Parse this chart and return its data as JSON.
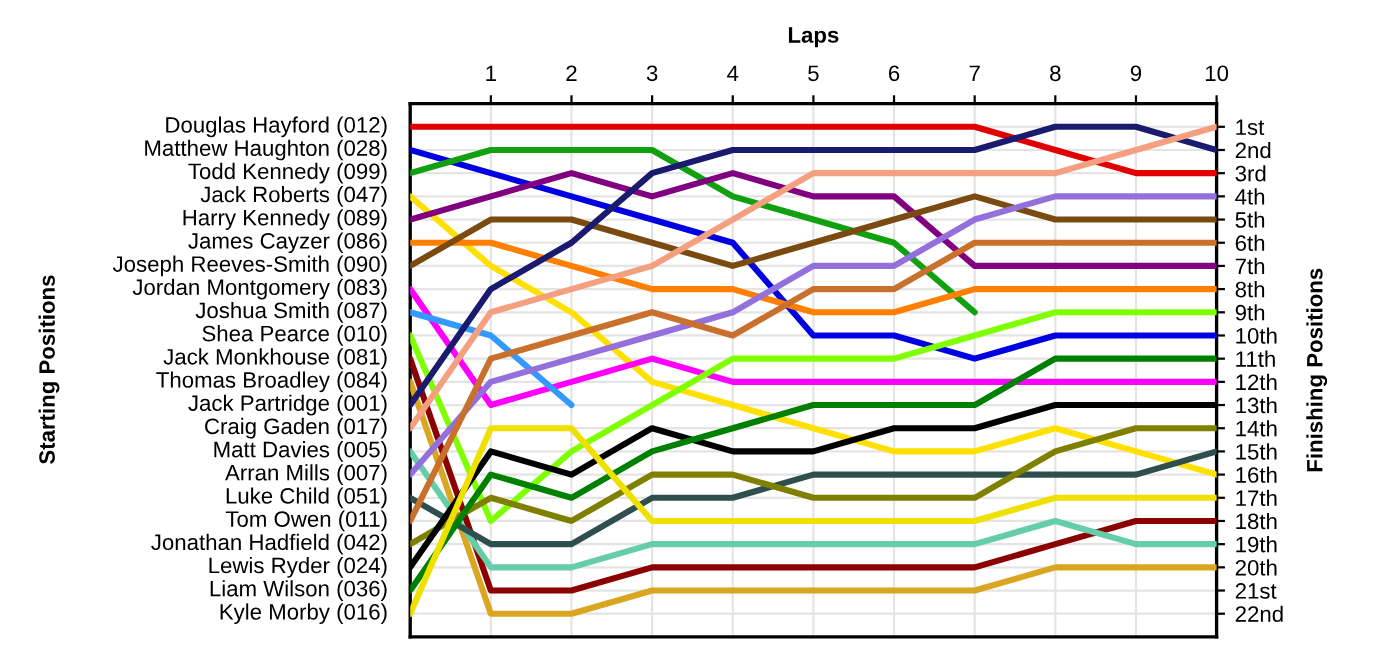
{
  "chart_data": {
    "type": "line",
    "xlabel": "Laps",
    "ylabel": "Finishing Positions",
    "annotations": [
      "Starting Positions"
    ],
    "x": [
      0,
      1,
      2,
      3,
      4,
      5,
      6,
      7,
      8,
      9,
      10
    ],
    "xlim": [
      0,
      10
    ],
    "xticks": [
      1,
      2,
      3,
      4,
      5,
      6,
      7,
      8,
      9,
      10
    ],
    "ylim": [
      23,
      0
    ],
    "yticks": [
      {
        "value": 1,
        "label": "1st"
      },
      {
        "value": 2,
        "label": "2nd"
      },
      {
        "value": 3,
        "label": "3rd"
      },
      {
        "value": 4,
        "label": "4th"
      },
      {
        "value": 5,
        "label": "5th"
      },
      {
        "value": 6,
        "label": "6th"
      },
      {
        "value": 7,
        "label": "7th"
      },
      {
        "value": 8,
        "label": "8th"
      },
      {
        "value": 9,
        "label": "9th"
      },
      {
        "value": 10,
        "label": "10th"
      },
      {
        "value": 11,
        "label": "11th"
      },
      {
        "value": 12,
        "label": "12th"
      },
      {
        "value": 13,
        "label": "13th"
      },
      {
        "value": 14,
        "label": "14th"
      },
      {
        "value": 15,
        "label": "15th"
      },
      {
        "value": 16,
        "label": "16th"
      },
      {
        "value": 17,
        "label": "17th"
      },
      {
        "value": 18,
        "label": "18th"
      },
      {
        "value": 19,
        "label": "19th"
      },
      {
        "value": 20,
        "label": "20th"
      },
      {
        "value": 21,
        "label": "21st"
      },
      {
        "value": 22,
        "label": "22nd"
      }
    ],
    "grid": true,
    "legend": "left",
    "marker": "none",
    "line_style": "solid",
    "series": [
      {
        "name": "Douglas Hayford (012)",
        "color": "#e00000",
        "values": [
          1,
          1,
          1,
          1,
          1,
          1,
          1,
          1,
          2,
          3,
          3
        ]
      },
      {
        "name": "Matthew Haughton (028)",
        "color": "#0000e0",
        "values": [
          2,
          3,
          4,
          5,
          6,
          10,
          10,
          11,
          10,
          10,
          10
        ]
      },
      {
        "name": "Todd Kennedy (099)",
        "color": "#10a010",
        "values": [
          3,
          2,
          2,
          2,
          4,
          5,
          6,
          9,
          null,
          null,
          null
        ]
      },
      {
        "name": "Jack Roberts (047)",
        "color": "#ffe000",
        "values": [
          4,
          7,
          9,
          12,
          13,
          14,
          15,
          15,
          14,
          15,
          16
        ]
      },
      {
        "name": "Harry Kennedy (089)",
        "color": "#800080",
        "values": [
          5,
          4,
          3,
          4,
          3,
          4,
          4,
          7,
          7,
          7,
          7
        ]
      },
      {
        "name": "James Cayzer (086)",
        "color": "#ff8000",
        "values": [
          6,
          6,
          7,
          8,
          8,
          9,
          9,
          8,
          8,
          8,
          8
        ]
      },
      {
        "name": "Joseph Reeves-Smith (090)",
        "color": "#7a4a10",
        "values": [
          7,
          5,
          5,
          6,
          7,
          6,
          5,
          4,
          5,
          5,
          5
        ]
      },
      {
        "name": "Jordan Montgomery (083)",
        "color": "#ff00ff",
        "values": [
          8,
          13,
          12,
          11,
          12,
          12,
          12,
          12,
          12,
          12,
          12
        ]
      },
      {
        "name": "Joshua Smith (087)",
        "color": "#3399ff",
        "values": [
          9,
          10,
          13,
          null,
          null,
          null,
          null,
          null,
          null,
          null,
          null
        ]
      },
      {
        "name": "Shea Pearce (010)",
        "color": "#80ff00",
        "values": [
          10,
          18,
          15,
          13,
          11,
          11,
          11,
          10,
          9,
          9,
          9
        ]
      },
      {
        "name": "Jack Monkhouse (081)",
        "color": "#8b0000",
        "values": [
          11,
          21,
          21,
          20,
          20,
          20,
          20,
          20,
          19,
          18,
          18
        ]
      },
      {
        "name": "Thomas Broadley (084)",
        "color": "#daa520",
        "values": [
          12,
          22,
          22,
          21,
          21,
          21,
          21,
          21,
          20,
          20,
          20
        ]
      },
      {
        "name": "Jack Partridge (001)",
        "color": "#1a1a6e",
        "values": [
          13,
          8,
          6,
          3,
          2,
          2,
          2,
          2,
          1,
          1,
          2
        ]
      },
      {
        "name": "Craig Gaden (017)",
        "color": "#f4a080",
        "values": [
          14,
          9,
          8,
          7,
          5,
          3,
          3,
          3,
          3,
          2,
          1
        ]
      },
      {
        "name": "Matt Davies (005)",
        "color": "#66cdaa",
        "values": [
          15,
          20,
          20,
          19,
          19,
          19,
          19,
          19,
          18,
          19,
          19
        ]
      },
      {
        "name": "Arran Mills (007)",
        "color": "#9370db",
        "values": [
          16,
          12,
          11,
          10,
          9,
          7,
          7,
          5,
          4,
          4,
          4
        ]
      },
      {
        "name": "Luke Child (051)",
        "color": "#2f4f4f",
        "values": [
          17,
          19,
          19,
          17,
          17,
          16,
          16,
          16,
          16,
          16,
          15
        ]
      },
      {
        "name": "Tom Owen (011)",
        "color": "#c8702c",
        "values": [
          18,
          11,
          10,
          9,
          10,
          8,
          8,
          6,
          6,
          6,
          6
        ]
      },
      {
        "name": "Jonathan Hadfield (042)",
        "color": "#808000",
        "values": [
          19,
          17,
          18,
          16,
          16,
          17,
          17,
          17,
          15,
          14,
          14
        ]
      },
      {
        "name": "Lewis Ryder (024)",
        "color": "#000000",
        "values": [
          20,
          15,
          16,
          14,
          15,
          15,
          14,
          14,
          13,
          13,
          13
        ]
      },
      {
        "name": "Liam Wilson (036)",
        "color": "#008000",
        "values": [
          21,
          16,
          17,
          15,
          14,
          13,
          13,
          13,
          11,
          11,
          11
        ]
      },
      {
        "name": "Kyle Morby (016)",
        "color": "#f0e000",
        "values": [
          22,
          14,
          14,
          18,
          18,
          18,
          18,
          18,
          17,
          17,
          17
        ]
      }
    ]
  }
}
